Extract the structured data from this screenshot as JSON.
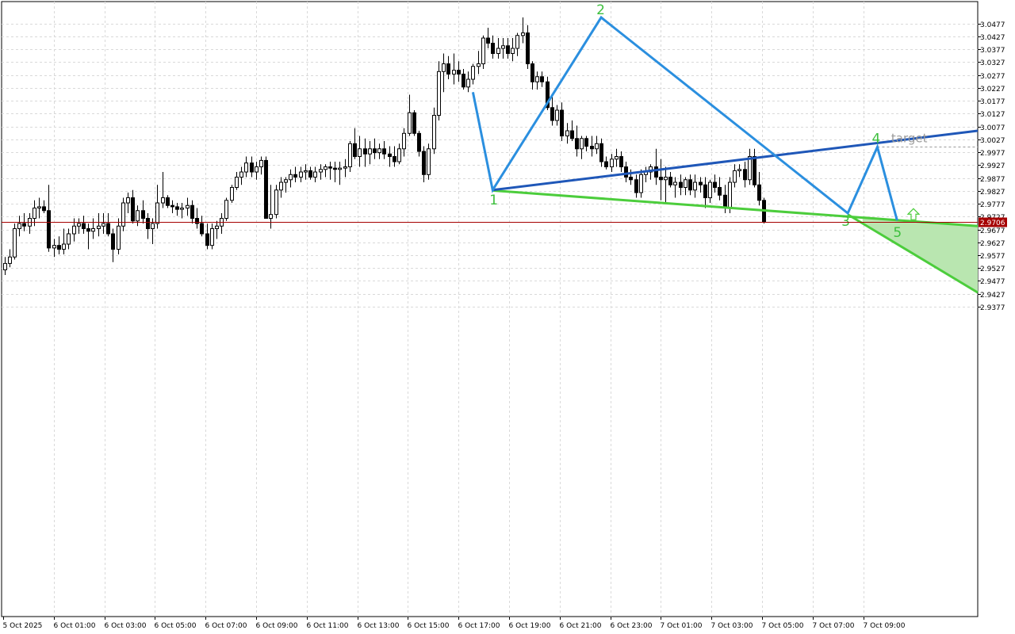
{
  "chart_data": {
    "type": "candlestick",
    "title": "",
    "xlabel": "",
    "ylabel": "",
    "ylim": [
      2.9337,
      3.0527
    ],
    "y_ticks": [
      "3.0477",
      "3.0427",
      "3.0377",
      "3.0327",
      "3.0277",
      "3.0227",
      "3.0177",
      "3.0127",
      "3.0077",
      "3.0027",
      "2.9977",
      "2.9927",
      "2.9877",
      "2.9827",
      "2.9777",
      "2.9727",
      "2.9677",
      "2.9627",
      "2.9577",
      "2.9527",
      "2.9477",
      "2.9427",
      "2.9377"
    ],
    "x_ticks": [
      "5 Oct 2025",
      "6 Oct 01:00",
      "6 Oct 03:00",
      "6 Oct 05:00",
      "6 Oct 07:00",
      "6 Oct 09:00",
      "6 Oct 11:00",
      "6 Oct 13:00",
      "6 Oct 15:00",
      "6 Oct 17:00",
      "6 Oct 19:00",
      "6 Oct 21:00",
      "6 Oct 23:00",
      "7 Oct 01:00",
      "7 Oct 03:00",
      "7 Oct 05:00",
      "7 Oct 07:00",
      "7 Oct 09:00"
    ],
    "grid": true,
    "current_price": "2.9706",
    "series": [
      {
        "bars": [
          [
            2.952,
            2.957,
            2.95,
            2.9545
          ],
          [
            2.9545,
            2.96,
            2.953,
            2.957
          ],
          [
            2.957,
            2.97,
            2.956,
            2.968
          ],
          [
            2.968,
            2.973,
            2.965,
            2.97
          ],
          [
            2.97,
            2.974,
            2.967,
            2.969
          ],
          [
            2.969,
            2.974,
            2.966,
            2.972
          ],
          [
            2.972,
            2.979,
            2.969,
            2.976
          ],
          [
            2.976,
            2.98,
            2.972,
            2.9765
          ],
          [
            2.9765,
            2.979,
            2.974,
            2.975
          ],
          [
            2.975,
            2.985,
            2.959,
            2.9605
          ],
          [
            2.9605,
            2.964,
            2.957,
            2.9615
          ],
          [
            2.9615,
            2.965,
            2.958,
            2.96
          ],
          [
            2.96,
            2.968,
            2.958,
            2.962
          ],
          [
            2.962,
            2.968,
            2.96,
            2.966
          ],
          [
            2.966,
            2.972,
            2.963,
            2.969
          ],
          [
            2.969,
            2.972,
            2.966,
            2.97
          ],
          [
            2.97,
            2.973,
            2.966,
            2.968
          ],
          [
            2.968,
            2.97,
            2.96,
            2.967
          ],
          [
            2.967,
            2.972,
            2.964,
            2.968
          ],
          [
            2.968,
            2.974,
            2.965,
            2.969
          ],
          [
            2.969,
            2.974,
            2.966,
            2.97
          ],
          [
            2.97,
            2.974,
            2.965,
            2.966
          ],
          [
            2.966,
            2.968,
            2.955,
            2.96
          ],
          [
            2.96,
            2.972,
            2.958,
            2.969
          ],
          [
            2.969,
            2.98,
            2.967,
            2.978
          ],
          [
            2.978,
            2.982,
            2.974,
            2.98
          ],
          [
            2.98,
            2.983,
            2.97,
            2.971
          ],
          [
            2.971,
            2.977,
            2.969,
            2.975
          ],
          [
            2.975,
            2.979,
            2.97,
            2.972
          ],
          [
            2.972,
            2.974,
            2.964,
            2.968
          ],
          [
            2.968,
            2.972,
            2.962,
            2.97
          ],
          [
            2.97,
            2.985,
            2.968,
            2.978
          ],
          [
            2.978,
            2.99,
            2.976,
            2.98
          ],
          [
            2.98,
            2.981,
            2.976,
            2.977
          ],
          [
            2.977,
            2.979,
            2.974,
            2.9765
          ],
          [
            2.9765,
            2.978,
            2.973,
            2.9755
          ],
          [
            2.9755,
            2.978,
            2.972,
            2.976
          ],
          [
            2.976,
            2.98,
            2.973,
            2.977
          ],
          [
            2.977,
            2.979,
            2.97,
            2.972
          ],
          [
            2.972,
            2.976,
            2.968,
            2.97
          ],
          [
            2.97,
            2.973,
            2.965,
            2.966
          ],
          [
            2.966,
            2.97,
            2.96,
            2.9615
          ],
          [
            2.9615,
            2.97,
            2.96,
            2.968
          ],
          [
            2.968,
            2.971,
            2.964,
            2.969
          ],
          [
            2.969,
            2.974,
            2.966,
            2.972
          ],
          [
            2.972,
            2.98,
            2.971,
            2.979
          ],
          [
            2.979,
            2.985,
            2.978,
            2.984
          ],
          [
            2.984,
            2.99,
            2.983,
            2.988
          ],
          [
            2.988,
            2.992,
            2.985,
            2.99
          ],
          [
            2.99,
            2.996,
            2.988,
            2.9935
          ],
          [
            2.9935,
            2.996,
            2.988,
            2.99
          ],
          [
            2.99,
            2.994,
            2.987,
            2.992
          ],
          [
            2.992,
            2.996,
            2.989,
            2.9945
          ],
          [
            2.9945,
            2.996,
            2.972,
            2.972
          ],
          [
            2.972,
            2.985,
            2.968,
            2.9735
          ],
          [
            2.9735,
            2.985,
            2.972,
            2.983
          ],
          [
            2.983,
            2.988,
            2.98,
            2.986
          ],
          [
            2.986,
            2.988,
            2.982,
            2.987
          ],
          [
            2.987,
            2.991,
            2.984,
            2.989
          ],
          [
            2.989,
            2.992,
            2.986,
            2.988
          ],
          [
            2.988,
            2.992,
            2.986,
            2.99
          ],
          [
            2.99,
            2.993,
            2.987,
            2.9905
          ],
          [
            2.9905,
            2.992,
            2.987,
            2.988
          ],
          [
            2.988,
            2.992,
            2.986,
            2.99
          ],
          [
            2.99,
            2.993,
            2.987,
            2.991
          ],
          [
            2.991,
            2.993,
            2.988,
            2.992
          ],
          [
            2.992,
            2.994,
            2.987,
            2.9915
          ],
          [
            2.9915,
            2.994,
            2.986,
            2.991
          ],
          [
            2.991,
            2.994,
            2.985,
            2.9915
          ],
          [
            2.9915,
            2.995,
            2.988,
            2.992
          ],
          [
            2.992,
            3.002,
            2.99,
            3.001
          ],
          [
            3.001,
            3.007,
            2.995,
            2.996
          ],
          [
            2.996,
            3.004,
            2.992,
            2.999
          ],
          [
            2.999,
            3.003,
            2.992,
            2.997
          ],
          [
            2.997,
            3.002,
            2.993,
            2.999
          ],
          [
            2.999,
            3.003,
            2.995,
            2.9975
          ],
          [
            2.9975,
            3.001,
            2.995,
            2.999
          ],
          [
            2.999,
            3.002,
            2.995,
            2.997
          ],
          [
            2.997,
            3.0,
            2.992,
            2.996
          ],
          [
            2.996,
            3.0,
            2.992,
            2.994
          ],
          [
            2.994,
            3.001,
            2.993,
            2.999
          ],
          [
            2.999,
            3.007,
            2.996,
            3.005
          ],
          [
            3.005,
            3.02,
            3.004,
            3.013
          ],
          [
            3.013,
            3.014,
            3.004,
            3.005
          ],
          [
            3.005,
            3.006,
            2.996,
            2.998
          ],
          [
            2.998,
            3.0,
            2.986,
            2.989
          ],
          [
            2.989,
            3.001,
            2.987,
            2.999
          ],
          [
            2.999,
            3.015,
            2.997,
            3.012
          ],
          [
            3.012,
            3.033,
            3.01,
            3.029
          ],
          [
            3.029,
            3.036,
            3.021,
            3.032
          ],
          [
            3.032,
            3.035,
            3.026,
            3.028
          ],
          [
            3.028,
            3.036,
            3.024,
            3.0295
          ],
          [
            3.0295,
            3.033,
            3.025,
            3.028
          ],
          [
            3.028,
            3.03,
            3.022,
            3.023
          ],
          [
            3.023,
            3.029,
            3.021,
            3.026
          ],
          [
            3.026,
            3.032,
            3.024,
            3.031
          ],
          [
            3.031,
            3.037,
            3.028,
            3.032
          ],
          [
            3.032,
            3.043,
            3.03,
            3.042
          ],
          [
            3.042,
            3.046,
            3.038,
            3.04
          ],
          [
            3.04,
            3.043,
            3.034,
            3.036
          ],
          [
            3.036,
            3.042,
            3.034,
            3.038
          ],
          [
            3.038,
            3.042,
            3.034,
            3.039
          ],
          [
            3.039,
            3.042,
            3.034,
            3.036
          ],
          [
            3.036,
            3.042,
            3.033,
            3.038
          ],
          [
            3.038,
            3.044,
            3.035,
            3.043
          ],
          [
            3.043,
            3.05,
            3.04,
            3.044
          ],
          [
            3.044,
            3.047,
            3.03,
            3.032
          ],
          [
            3.032,
            3.033,
            3.022,
            3.025
          ],
          [
            3.025,
            3.029,
            3.022,
            3.027
          ],
          [
            3.027,
            3.029,
            3.023,
            3.025
          ],
          [
            3.025,
            3.027,
            3.014,
            3.015
          ],
          [
            3.015,
            3.02,
            3.008,
            3.01
          ],
          [
            3.01,
            3.016,
            3.008,
            3.014
          ],
          [
            3.014,
            3.017,
            3.002,
            3.004
          ],
          [
            3.004,
            3.009,
            3.001,
            3.006
          ],
          [
            3.006,
            3.01,
            3.002,
            3.003
          ],
          [
            3.003,
            3.008,
            2.996,
            2.999
          ],
          [
            2.999,
            3.004,
            2.995,
            3.003
          ],
          [
            3.003,
            3.004,
            2.998,
            3.0
          ],
          [
            3.0,
            3.004,
            2.996,
            2.999
          ],
          [
            2.999,
            3.004,
            2.997,
            3.001
          ],
          [
            3.001,
            3.003,
            2.992,
            2.994
          ],
          [
            2.994,
            2.996,
            2.991,
            2.992
          ],
          [
            2.992,
            2.997,
            2.99,
            2.995
          ],
          [
            2.995,
            2.999,
            2.992,
            2.996
          ],
          [
            2.996,
            2.998,
            2.99,
            2.992
          ],
          [
            2.992,
            2.994,
            2.986,
            2.988
          ],
          [
            2.988,
            2.991,
            2.985,
            2.987
          ],
          [
            2.987,
            2.989,
            2.98,
            2.982
          ],
          [
            2.982,
            2.991,
            2.98,
            2.989
          ],
          [
            2.989,
            2.992,
            2.986,
            2.99
          ],
          [
            2.99,
            2.993,
            2.987,
            2.992
          ],
          [
            2.992,
            2.999,
            2.985,
            2.988
          ],
          [
            2.988,
            2.995,
            2.979,
            2.987
          ],
          [
            2.987,
            2.992,
            2.978,
            2.988
          ],
          [
            2.988,
            2.99,
            2.984,
            2.985
          ],
          [
            2.985,
            2.988,
            2.98,
            2.986
          ],
          [
            2.986,
            2.989,
            2.981,
            2.984
          ],
          [
            2.984,
            2.988,
            2.981,
            2.987
          ],
          [
            2.987,
            2.989,
            2.981,
            2.983
          ],
          [
            2.983,
            2.989,
            2.98,
            2.986
          ],
          [
            2.986,
            2.988,
            2.982,
            2.985
          ],
          [
            2.985,
            2.988,
            2.976,
            2.98
          ],
          [
            2.98,
            2.987,
            2.978,
            2.986
          ],
          [
            2.986,
            2.989,
            2.982,
            2.984
          ],
          [
            2.984,
            2.988,
            2.979,
            2.981
          ],
          [
            2.981,
            2.985,
            2.974,
            2.976
          ],
          [
            2.976,
            2.988,
            2.974,
            2.986
          ],
          [
            2.986,
            2.993,
            2.984,
            2.9905
          ],
          [
            2.9905,
            2.993,
            2.988,
            2.991
          ],
          [
            2.991,
            2.994,
            2.984,
            2.987
          ],
          [
            2.987,
            2.999,
            2.985,
            2.996
          ],
          [
            2.996,
            2.999,
            2.984,
            2.985
          ],
          [
            2.985,
            2.99,
            2.977,
            2.979
          ],
          [
            2.979,
            2.98,
            2.97,
            2.9706
          ]
        ]
      }
    ],
    "zigzag": {
      "points": [
        {
          "bar": 95,
          "price": 3.021
        },
        {
          "bar": 99,
          "price": 2.983
        },
        {
          "bar": 121,
          "price": 3.05
        },
        {
          "bar": 171,
          "price": 2.974
        },
        {
          "bar": 177,
          "price": 2.9997
        },
        {
          "bar": 181,
          "price": 2.9712
        }
      ],
      "labels": [
        "1",
        "2",
        "3",
        "4",
        "5"
      ],
      "label_bars": [
        99,
        121,
        171,
        177,
        181
      ],
      "color": "#2b8fdf"
    },
    "target_line": {
      "from": [
        99,
        2.983
      ],
      "to": [
        203,
        3.006
      ],
      "color": "#1f57b8",
      "label": "target"
    },
    "lower_line": {
      "from": [
        99,
        2.9828
      ],
      "to": [
        203,
        2.969
      ],
      "color": "#4ccd3c"
    },
    "cone_line": {
      "from": [
        171,
        2.9735
      ],
      "to": [
        203,
        2.9432
      ],
      "color": "#4ccd3c"
    },
    "target_level": 2.9997,
    "colors": {
      "bull": "#ffffff",
      "bear": "#000000",
      "wick": "#000000",
      "grid": "#d9d9d9",
      "price_line": "#a50000",
      "price_tag": "#a50000",
      "cone_fill": "#b9e6b0"
    }
  }
}
